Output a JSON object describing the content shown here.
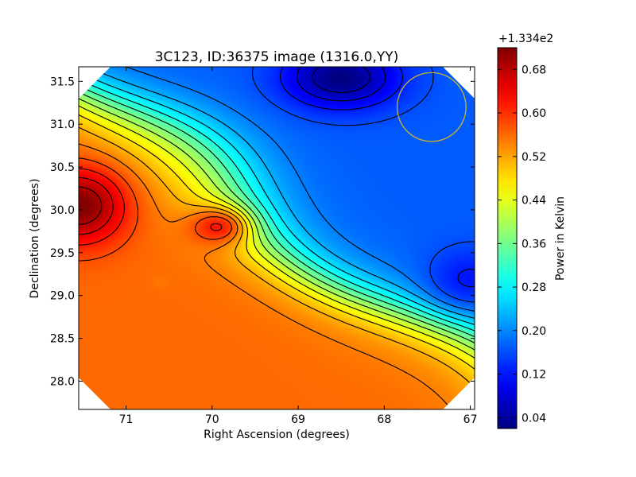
{
  "chart_data": {
    "type": "heatmap",
    "title": "3C123, ID:36375 image (1316.0,YY)",
    "xlabel": "Right Ascension (degrees)",
    "ylabel": "Declination (degrees)",
    "xlim": [
      71.55,
      66.95
    ],
    "ylim": [
      27.67,
      31.67
    ],
    "x_inverted": true,
    "xticks": [
      {
        "value": 71,
        "label": "71"
      },
      {
        "value": 70,
        "label": "70"
      },
      {
        "value": 69,
        "label": "69"
      },
      {
        "value": 68,
        "label": "68"
      },
      {
        "value": 67,
        "label": "67"
      }
    ],
    "yticks": [
      {
        "value": 28.0,
        "label": "28.0"
      },
      {
        "value": 28.5,
        "label": "28.5"
      },
      {
        "value": 29.0,
        "label": "29.0"
      },
      {
        "value": 29.5,
        "label": "29.5"
      },
      {
        "value": 30.0,
        "label": "30.0"
      },
      {
        "value": 30.5,
        "label": "30.5"
      },
      {
        "value": 31.0,
        "label": "31.0"
      },
      {
        "value": 31.5,
        "label": "31.5"
      }
    ],
    "colorbar": {
      "label": "Power in Kelvin",
      "offset_label": "+1.334e2",
      "vmin": 0.02,
      "vmax": 0.72,
      "colormap": "jet",
      "ticks": [
        {
          "value": 0.04,
          "label": "0.04"
        },
        {
          "value": 0.12,
          "label": "0.12"
        },
        {
          "value": 0.2,
          "label": "0.20"
        },
        {
          "value": 0.28,
          "label": "0.28"
        },
        {
          "value": 0.36,
          "label": "0.36"
        },
        {
          "value": 0.44,
          "label": "0.44"
        },
        {
          "value": 0.52,
          "label": "0.52"
        },
        {
          "value": 0.6,
          "label": "0.60"
        },
        {
          "value": 0.68,
          "label": "0.68"
        }
      ]
    },
    "contour_color": "#000000",
    "beam_circle": {
      "ra": 67.45,
      "dec": 31.2,
      "radius_deg": 0.4,
      "color": "#c8b432"
    },
    "features": [
      {
        "kind": "max",
        "ra": 71.55,
        "dec": 30.05,
        "value": 0.72,
        "spread_ra": 0.55,
        "spread_dec": 0.45
      },
      {
        "kind": "max",
        "ra": 69.95,
        "dec": 29.8,
        "value": 0.62,
        "spread_ra": 0.35,
        "spread_dec": 0.22
      },
      {
        "kind": "max",
        "ra": 70.6,
        "dec": 29.15,
        "value": 0.55,
        "spread_ra": 0.12,
        "spread_dec": 0.08
      },
      {
        "kind": "min",
        "ra": 68.5,
        "dec": 31.55,
        "value": 0.02,
        "spread_ra": 0.65,
        "spread_dec": 0.35
      },
      {
        "kind": "min",
        "ra": 67.0,
        "dec": 29.2,
        "value": 0.12,
        "spread_ra": 0.5,
        "spread_dec": 0.35
      }
    ]
  }
}
